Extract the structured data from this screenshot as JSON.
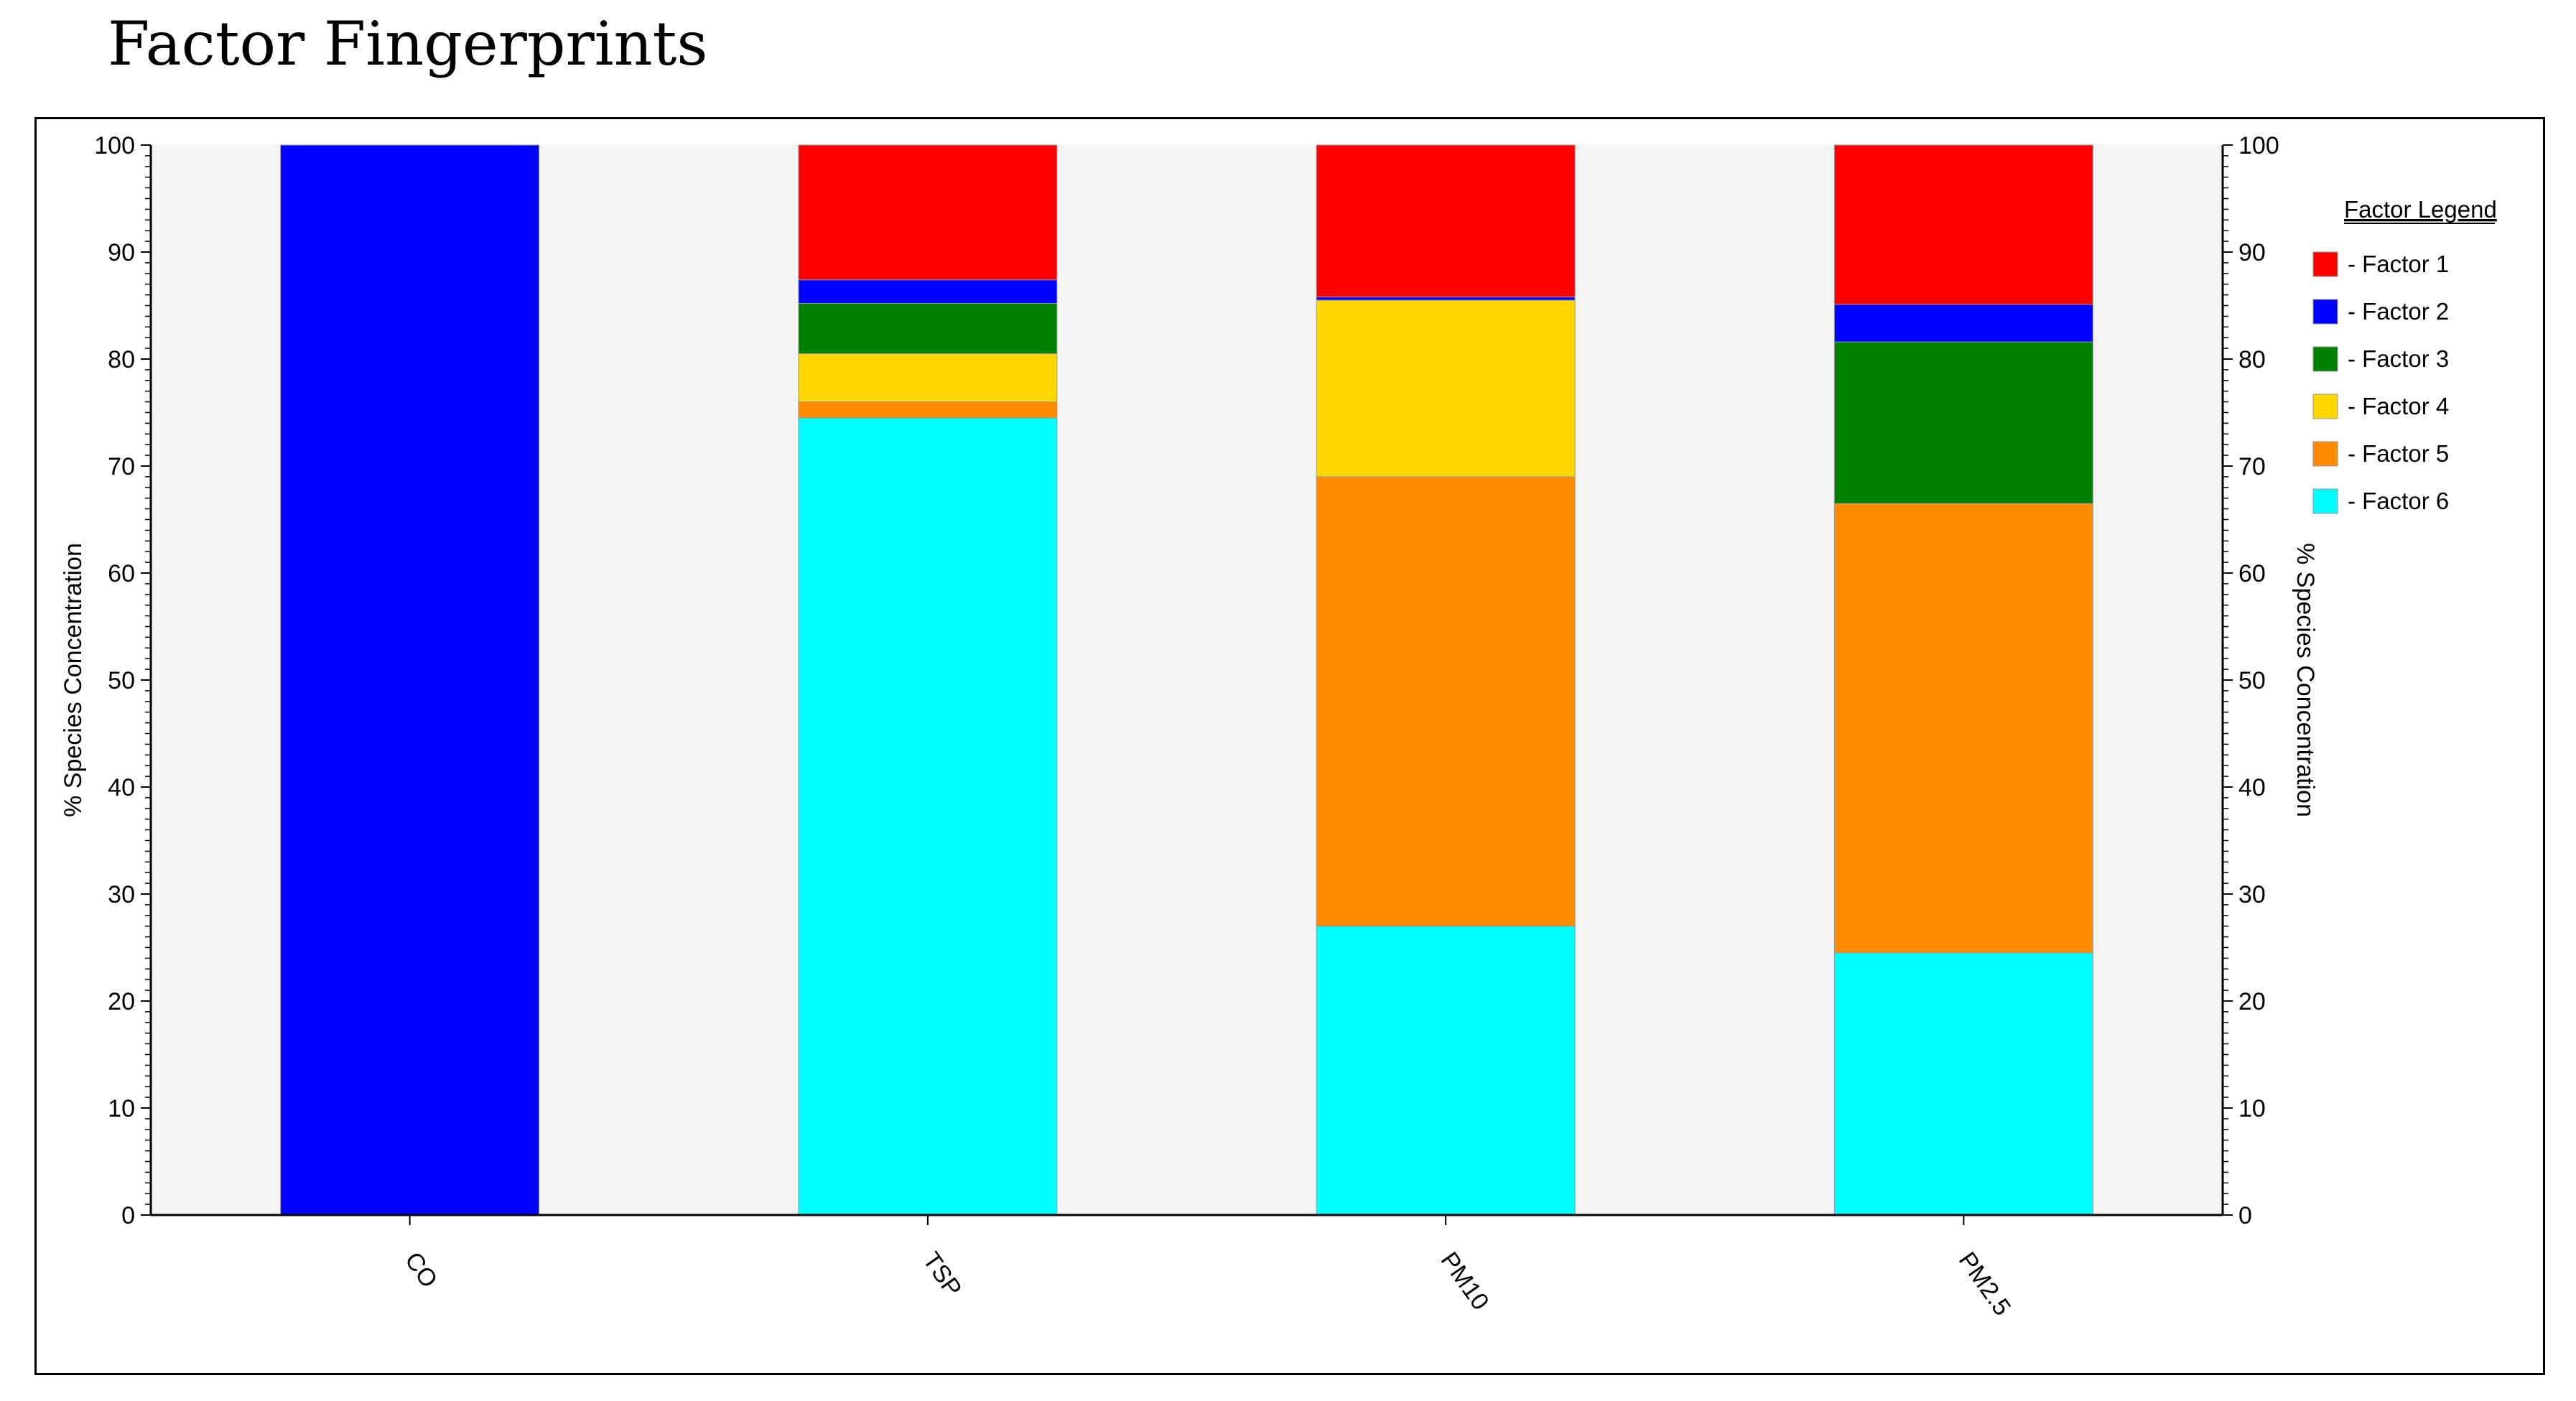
{
  "page": {
    "title": "Factor Fingerprints"
  },
  "chart_data": {
    "type": "bar",
    "stacked": true,
    "categories": [
      "CO",
      "TSP",
      "PM10",
      "PM2.5"
    ],
    "ylabel": "% Species Concentration",
    "ylabel_right": "% Species Concentration",
    "ylim": [
      0,
      100
    ],
    "yticks": [
      0,
      10,
      20,
      30,
      40,
      50,
      60,
      70,
      80,
      90,
      100
    ],
    "grid": false,
    "legend": {
      "title": "Factor Legend",
      "placement": "right"
    },
    "series": [
      {
        "name": "Factor 6",
        "color": "#00FFFF",
        "values": [
          0,
          74.5,
          27.0,
          24.5
        ]
      },
      {
        "name": "Factor 5",
        "color": "#FF8C00",
        "values": [
          0,
          1.5,
          42.0,
          42.0
        ]
      },
      {
        "name": "Factor 4",
        "color": "#FFD700",
        "values": [
          0,
          4.5,
          16.5,
          0
        ]
      },
      {
        "name": "Factor 3",
        "color": "#008000",
        "values": [
          0,
          4.7,
          0,
          15.1
        ]
      },
      {
        "name": "Factor 2",
        "color": "#0000FF",
        "values": [
          100,
          2.2,
          0.3,
          3.5
        ]
      },
      {
        "name": "Factor 1",
        "color": "#FF0000",
        "values": [
          0,
          12.6,
          14.2,
          14.9
        ]
      }
    ],
    "colors": {
      "plot_background": "#F4F4F4",
      "axis": "#000000"
    }
  }
}
